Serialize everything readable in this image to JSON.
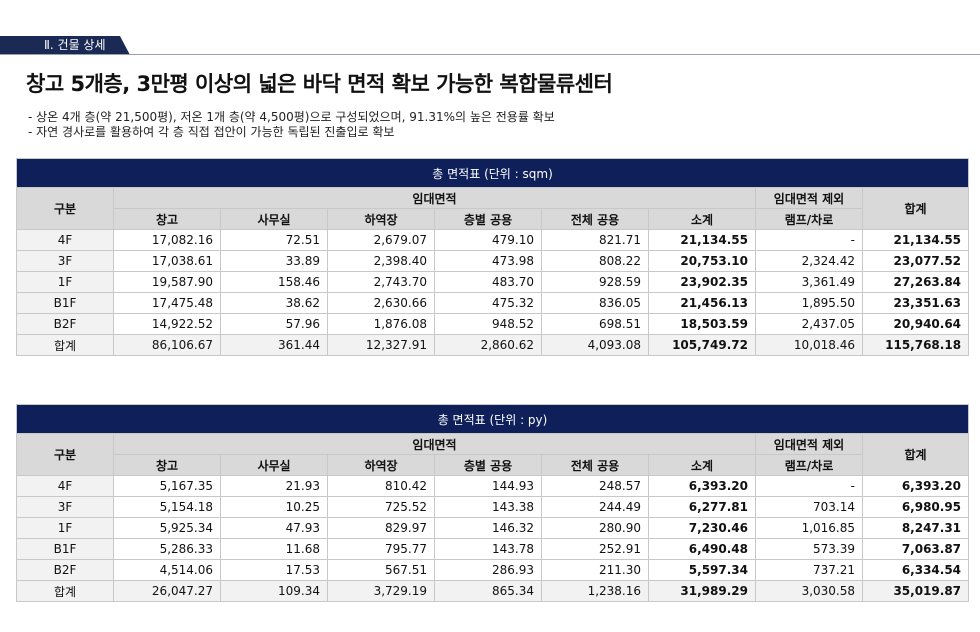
{
  "section_tag": "Ⅱ. 건물 상세",
  "headline": "창고 5개층, 3만평 이상의 넓은 바닥 면적 확보 가능한 복합물류센터",
  "bullets": [
    "- 상온 4개 층(약 21,500평), 저온 1개 층(약 4,500평)으로 구성되었으며, 91.31%의 높은 전용률 확보",
    "- 자연 경사로를 활용하여 각 층 직접 접안이 가능한 독립된 진출입로 확보"
  ],
  "tables": [
    {
      "caption": "총 면적표 (단위 : sqm)",
      "header": {
        "category": "구분",
        "rental_group": "임대면적",
        "excluded_group": "임대면적 제외",
        "total": "합계",
        "columns": [
          "창고",
          "사무실",
          "하역장",
          "층별 공용",
          "전체 공용",
          "소계",
          "램프/차로"
        ]
      },
      "rows": [
        {
          "label": "4F",
          "cells": [
            "17,082.16",
            "72.51",
            "2,679.07",
            "479.10",
            "821.71",
            "21,134.55",
            "-",
            "21,134.55"
          ]
        },
        {
          "label": "3F",
          "cells": [
            "17,038.61",
            "33.89",
            "2,398.40",
            "473.98",
            "808.22",
            "20,753.10",
            "2,324.42",
            "23,077.52"
          ]
        },
        {
          "label": "1F",
          "cells": [
            "19,587.90",
            "158.46",
            "2,743.70",
            "483.70",
            "928.59",
            "23,902.35",
            "3,361.49",
            "27,263.84"
          ]
        },
        {
          "label": "B1F",
          "cells": [
            "17,475.48",
            "38.62",
            "2,630.66",
            "475.32",
            "836.05",
            "21,456.13",
            "1,895.50",
            "23,351.63"
          ]
        },
        {
          "label": "B2F",
          "cells": [
            "14,922.52",
            "57.96",
            "1,876.08",
            "948.52",
            "698.51",
            "18,503.59",
            "2,437.05",
            "20,940.64"
          ]
        },
        {
          "label": "합계",
          "cells": [
            "86,106.67",
            "361.44",
            "12,327.91",
            "2,860.62",
            "4,093.08",
            "105,749.72",
            "10,018.46",
            "115,768.18"
          ]
        }
      ]
    },
    {
      "caption": "총 면적표 (단위 : py)",
      "header": {
        "category": "구분",
        "rental_group": "임대면적",
        "excluded_group": "임대면적 제외",
        "total": "합계",
        "columns": [
          "창고",
          "사무실",
          "하역장",
          "층별 공용",
          "전체 공용",
          "소계",
          "램프/차로"
        ]
      },
      "rows": [
        {
          "label": "4F",
          "cells": [
            "5,167.35",
            "21.93",
            "810.42",
            "144.93",
            "248.57",
            "6,393.20",
            "-",
            "6,393.20"
          ]
        },
        {
          "label": "3F",
          "cells": [
            "5,154.18",
            "10.25",
            "725.52",
            "143.38",
            "244.49",
            "6,277.81",
            "703.14",
            "6,980.95"
          ]
        },
        {
          "label": "1F",
          "cells": [
            "5,925.34",
            "47.93",
            "829.97",
            "146.32",
            "280.90",
            "7,230.46",
            "1,016.85",
            "8,247.31"
          ]
        },
        {
          "label": "B1F",
          "cells": [
            "5,286.33",
            "11.68",
            "795.77",
            "143.78",
            "252.91",
            "6,490.48",
            "573.39",
            "7,063.87"
          ]
        },
        {
          "label": "B2F",
          "cells": [
            "4,514.06",
            "17.53",
            "567.51",
            "286.93",
            "211.30",
            "5,597.34",
            "737.21",
            "6,334.54"
          ]
        },
        {
          "label": "합계",
          "cells": [
            "26,047.27",
            "109.34",
            "3,729.19",
            "865.34",
            "1,238.16",
            "31,989.29",
            "3,030.58",
            "35,019.87"
          ]
        }
      ]
    }
  ]
}
